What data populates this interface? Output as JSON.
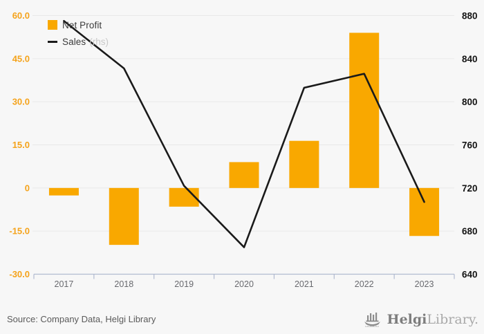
{
  "chart_data": {
    "type": "bar+line",
    "categories": [
      "2017",
      "2018",
      "2019",
      "2020",
      "2021",
      "2022",
      "2023"
    ],
    "series": [
      {
        "name": "Net Profit",
        "type": "bar",
        "axis": "left",
        "color": "#F9A800",
        "values": [
          -2.6,
          -19.8,
          -6.5,
          9.0,
          16.4,
          54.0,
          -16.7
        ]
      },
      {
        "name": "Sales",
        "axis_note": "(rhs)",
        "type": "line",
        "axis": "right",
        "color": "#1a1a1a",
        "values": [
          875,
          831,
          722,
          665,
          813,
          826,
          707
        ]
      }
    ],
    "left_axis": {
      "min": -30,
      "max": 60,
      "tick_labels": [
        "60.0",
        "45.0",
        "30.0",
        "15.0",
        "0",
        "-15.0",
        "-30.0"
      ],
      "label_color": "#F5A31B"
    },
    "right_axis": {
      "min": 640,
      "max": 880,
      "tick_labels": [
        "880",
        "840",
        "800",
        "760",
        "720",
        "680",
        "640"
      ],
      "label_color": "#141414"
    },
    "grid": true,
    "legend_position": "top-left",
    "gridline_color": "#e8e8e8",
    "axis_line_color": "#b1bad0",
    "category_label_color": "#68696e"
  },
  "legend": {
    "net_profit": "Net Profit",
    "sales": "Sales",
    "sales_note": "(rhs)"
  },
  "footer": {
    "source": "Source: Company Data, Helgi Library",
    "logo_primary": "Helgi",
    "logo_secondary": "Library."
  }
}
